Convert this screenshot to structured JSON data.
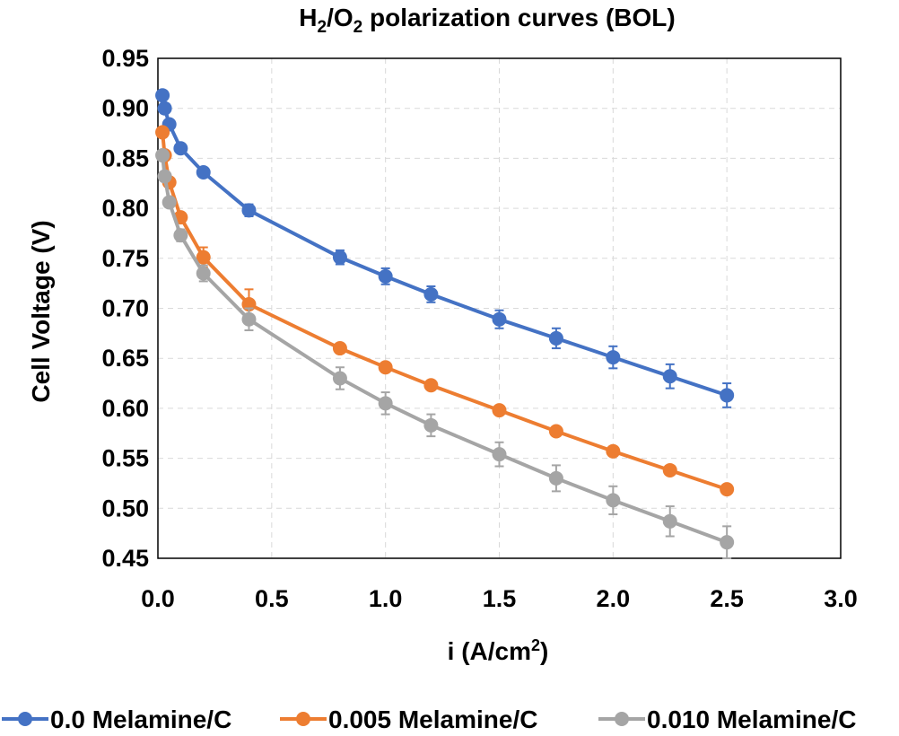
{
  "chart_data": {
    "type": "line",
    "title": {
      "base": "H",
      "sub1": "2",
      "mid": "/O",
      "sub2": "2",
      "rest": " polarization curves (BOL)"
    },
    "xlabel": {
      "base": "i (A/cm",
      "sup": "2",
      "end": ")"
    },
    "ylabel": "Cell Voltage (V)",
    "xlim": [
      0,
      3
    ],
    "ylim": [
      0.45,
      0.95
    ],
    "xticks": [
      "0.0",
      "0.5",
      "1.0",
      "1.5",
      "2.0",
      "2.5",
      "3.0"
    ],
    "yticks": [
      "0.45",
      "0.50",
      "0.55",
      "0.60",
      "0.65",
      "0.70",
      "0.75",
      "0.80",
      "0.85",
      "0.90",
      "0.95"
    ],
    "grid": "dashed vertical and horizontal",
    "legend_position": "bottom",
    "x": [
      0.02,
      0.03,
      0.05,
      0.1,
      0.2,
      0.4,
      0.8,
      1.0,
      1.2,
      1.5,
      1.75,
      2.0,
      2.25,
      2.5
    ],
    "series": [
      {
        "name": "0.0 Melamine/C",
        "color": "#4472C4",
        "values": [
          0.913,
          0.9,
          0.884,
          0.86,
          0.836,
          0.798,
          0.751,
          0.732,
          0.714,
          0.689,
          0.67,
          0.651,
          0.632,
          0.613
        ],
        "errors": [
          0.003,
          0.003,
          0.003,
          0.003,
          0.003,
          0.006,
          0.007,
          0.008,
          0.008,
          0.009,
          0.01,
          0.011,
          0.012,
          0.012
        ]
      },
      {
        "name": "0.005 Melamine/C",
        "color": "#ED7D31",
        "values": [
          0.876,
          0.853,
          0.826,
          0.791,
          0.751,
          0.704,
          0.66,
          0.641,
          0.623,
          0.598,
          0.577,
          0.557,
          0.538,
          0.519
        ],
        "errors": [
          0.003,
          0.003,
          0.003,
          0.003,
          0.01,
          0.015,
          0.003,
          0.003,
          0.003,
          0.003,
          0.003,
          0.003,
          0.003,
          0.003
        ]
      },
      {
        "name": "0.010 Melamine/C",
        "color": "#A5A5A5",
        "values": [
          0.853,
          0.832,
          0.806,
          0.773,
          0.735,
          0.689,
          0.63,
          0.605,
          0.583,
          0.554,
          0.53,
          0.508,
          0.487,
          0.466
        ],
        "errors": [
          0.003,
          0.003,
          0.003,
          0.006,
          0.008,
          0.011,
          0.011,
          0.011,
          0.011,
          0.012,
          0.013,
          0.014,
          0.015,
          0.016
        ]
      }
    ]
  }
}
